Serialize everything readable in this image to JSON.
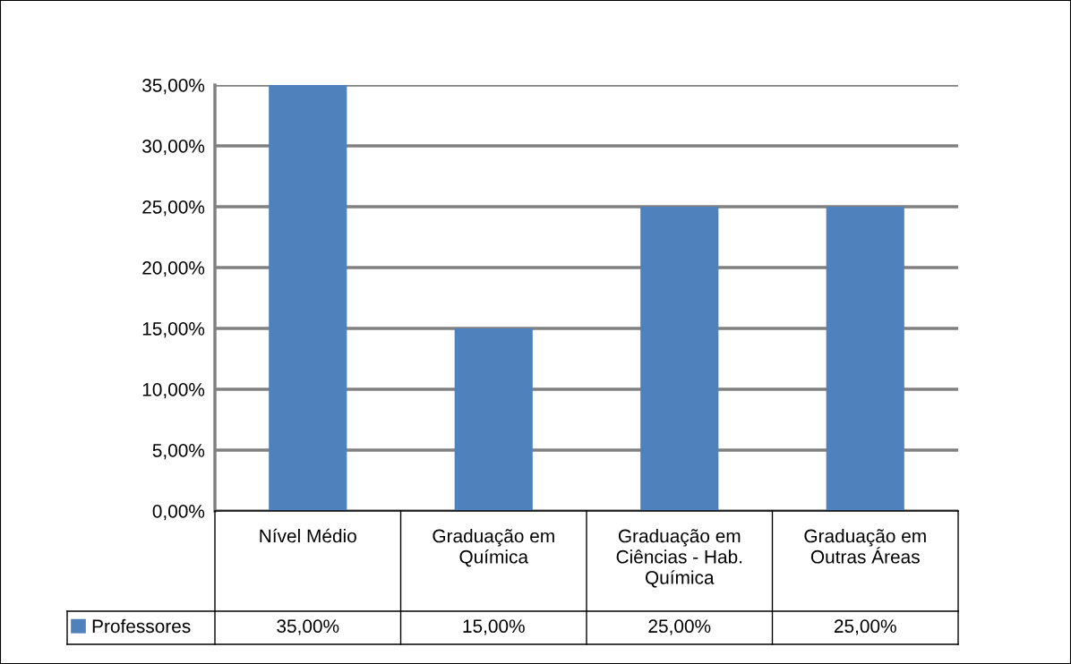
{
  "chart_data": {
    "type": "bar",
    "categories": [
      "Nível Médio",
      "Graduação em Química",
      "Graduação em Ciências - Hab. Química",
      "Graduação em Outras Áreas"
    ],
    "series": [
      {
        "name": "Professores",
        "color": "#4f81bd",
        "values": [
          35,
          15,
          25,
          25
        ],
        "value_labels": [
          "35,00%",
          "15,00%",
          "25,00%",
          "25,00%"
        ]
      }
    ],
    "ylim": [
      0,
      35
    ],
    "yticks": [
      {
        "value": 0,
        "label": "0,00%"
      },
      {
        "value": 5,
        "label": "5,00%"
      },
      {
        "value": 10,
        "label": "10,00%"
      },
      {
        "value": 15,
        "label": "15,00%"
      },
      {
        "value": 20,
        "label": "20,00%"
      },
      {
        "value": 25,
        "label": "25,00%"
      },
      {
        "value": 30,
        "label": "30,00%"
      },
      {
        "value": 35,
        "label": "35,00%"
      }
    ],
    "grid": "y",
    "legend": "bottom left"
  }
}
